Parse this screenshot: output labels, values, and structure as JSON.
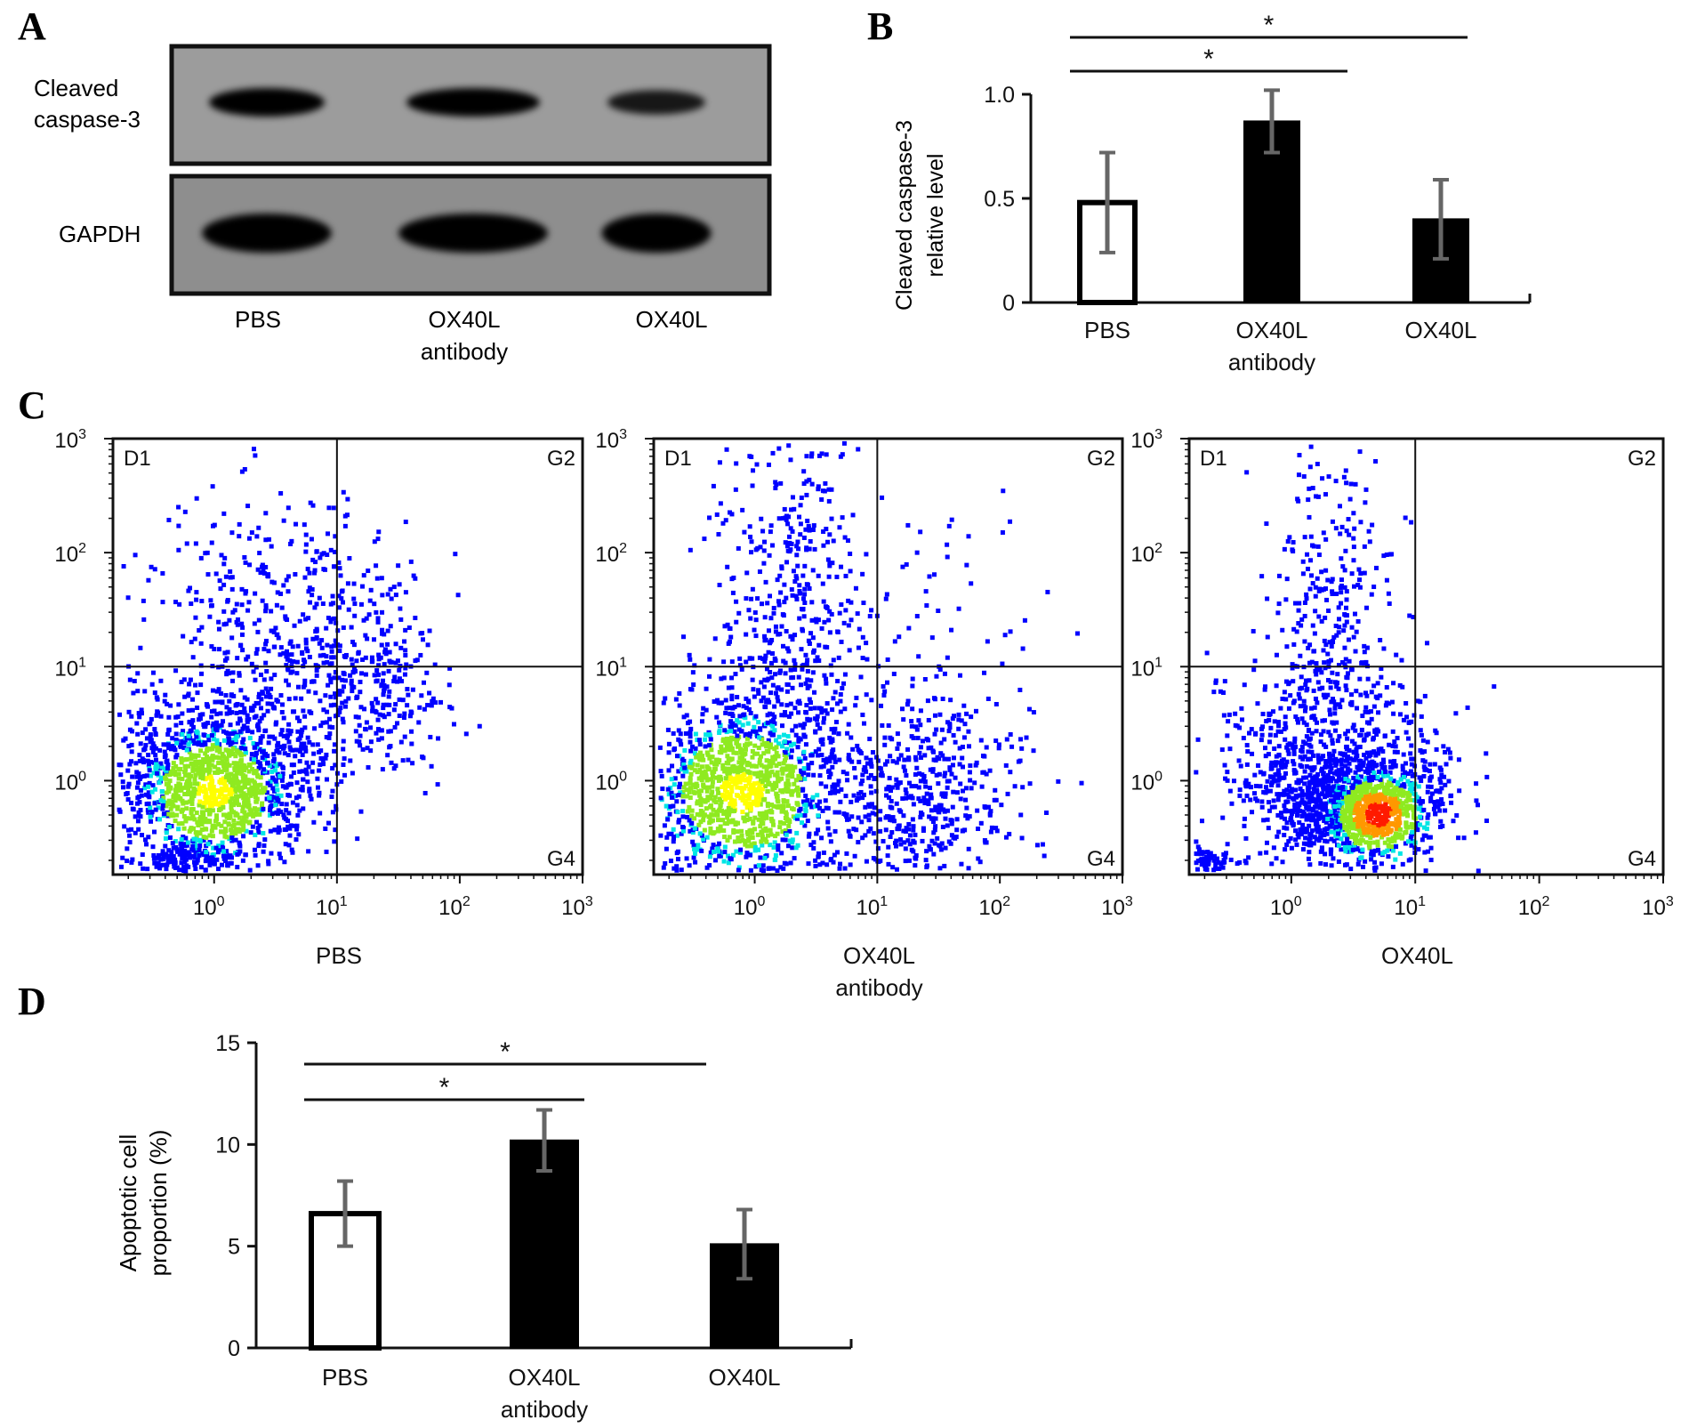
{
  "panels": {
    "A": {
      "letter": "A",
      "blots": [
        {
          "label_lines": [
            "Cleaved",
            "caspase-3"
          ],
          "band_darkness": [
            1.0,
            1.0,
            0.85
          ]
        },
        {
          "label_lines": [
            "GAPDH"
          ],
          "band_darkness": [
            1.0,
            1.0,
            1.0
          ]
        }
      ],
      "lanes": [
        {
          "line1": "PBS",
          "line2": ""
        },
        {
          "line1": "OX40L",
          "line2": "antibody"
        },
        {
          "line1": "OX40L",
          "line2": ""
        }
      ]
    },
    "B": {
      "letter": "B",
      "ylabel_lines": [
        "Cleaved caspase-3",
        "relative level"
      ],
      "sig_marks": [
        "*",
        "*"
      ]
    },
    "C": {
      "letter": "C",
      "plots": [
        {
          "xlabel_line1": "PBS",
          "xlabel_line2": "",
          "gate_x": 10
        },
        {
          "xlabel_line1": "OX40L",
          "xlabel_line2": "antibody",
          "gate_x": 10
        },
        {
          "xlabel_line1": "OX40L",
          "xlabel_line2": "",
          "gate_x": 10
        }
      ],
      "quadrant_labels": [
        "D1",
        "G2",
        "G4"
      ],
      "tick_labels": [
        "10",
        "10",
        "10",
        "10"
      ],
      "tick_exponents": [
        "0",
        "1",
        "2",
        "3"
      ],
      "gate_y": 10,
      "density_colors": [
        "#0000ff",
        "#00e5e5",
        "#8fea20",
        "#ffff00",
        "#ff9800",
        "#ff1a00"
      ]
    },
    "D": {
      "letter": "D",
      "ylabel_lines": [
        "Apoptotic cell",
        "proportion (%)"
      ],
      "sig_marks": [
        "*",
        "*"
      ]
    }
  },
  "chart_data": [
    {
      "type": "bar",
      "panel": "B",
      "categories": [
        "PBS",
        "OX40L antibody",
        "OX40L"
      ],
      "category_lines": [
        [
          "PBS",
          ""
        ],
        [
          "OX40L",
          "antibody"
        ],
        [
          "OX40L",
          ""
        ]
      ],
      "values": [
        0.48,
        0.87,
        0.4
      ],
      "errors": [
        0.24,
        0.15,
        0.19
      ],
      "fills": [
        "#ffffff",
        "#000000",
        "#000000"
      ],
      "ylabel": "Cleaved caspase-3 relative level",
      "ylim": [
        0,
        1.0
      ],
      "yticks": [
        0,
        0.5,
        1.0
      ],
      "ytick_labels": [
        "0",
        "0.5",
        "1.0"
      ],
      "significance": [
        {
          "from": "PBS",
          "to": "OX40L",
          "label": "*"
        },
        {
          "from": "PBS",
          "to": "OX40L antibody",
          "label": "*"
        }
      ]
    },
    {
      "type": "scatter",
      "panel": "C",
      "subtype": "flow-cytometry density",
      "xscale": "log",
      "yscale": "log",
      "xlim": [
        0.15,
        1000
      ],
      "ylim": [
        0.15,
        1000
      ],
      "populations": [
        {
          "name": "PBS",
          "quadrant_gates": {
            "x": 10,
            "y": 10
          }
        },
        {
          "name": "OX40L antibody",
          "quadrant_gates": {
            "x": 10,
            "y": 10
          }
        },
        {
          "name": "OX40L",
          "quadrant_gates": {
            "x": 10,
            "y": 10
          }
        }
      ]
    },
    {
      "type": "bar",
      "panel": "D",
      "categories": [
        "PBS",
        "OX40L antibody",
        "OX40L"
      ],
      "category_lines": [
        [
          "PBS",
          ""
        ],
        [
          "OX40L",
          "antibody"
        ],
        [
          "OX40L",
          ""
        ]
      ],
      "values": [
        6.6,
        10.2,
        5.1
      ],
      "errors": [
        1.6,
        1.5,
        1.7
      ],
      "fills": [
        "#ffffff",
        "#000000",
        "#000000"
      ],
      "ylabel": "Apoptotic cell proportion (%)",
      "ylim": [
        0,
        15
      ],
      "yticks": [
        0,
        5,
        10,
        15
      ],
      "ytick_labels": [
        "0",
        "5",
        "10",
        "15"
      ],
      "significance": [
        {
          "from": "PBS",
          "to": "OX40L",
          "label": "*"
        },
        {
          "from": "PBS",
          "to": "OX40L antibody",
          "label": "*"
        }
      ]
    }
  ]
}
